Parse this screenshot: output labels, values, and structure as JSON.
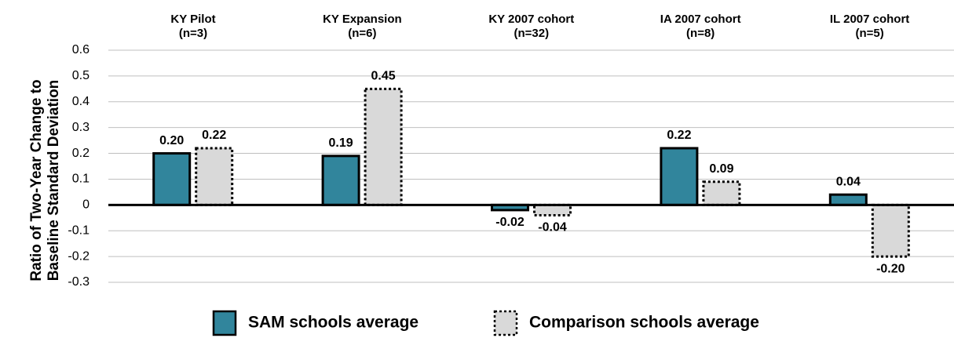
{
  "chart_data": {
    "type": "bar",
    "y_label": "Ratio of Two-Year Change to\nBaseline Standard Deviation",
    "categories": [
      "KY Pilot\n(n=3)",
      "KY Expansion\n(n=6)",
      "KY 2007 cohort\n(n=32)",
      "IA 2007 cohort\n(n=8)",
      "IL 2007 cohort\n(n=5)"
    ],
    "series": [
      {
        "name": "SAM schools average",
        "color": "#31859c",
        "edge": "solid",
        "values": [
          0.2,
          0.19,
          -0.02,
          0.22,
          0.04
        ],
        "value_labels": [
          "0.20",
          "0.19",
          "-0.02",
          "0.22",
          "0.04"
        ]
      },
      {
        "name": "Comparison schools average",
        "color": "#d9d9d9",
        "edge": "dotted",
        "values": [
          0.22,
          0.45,
          -0.04,
          0.09,
          -0.2
        ],
        "value_labels": [
          "0.22",
          "0.45",
          "-0.04",
          "0.09",
          "-0.20"
        ]
      }
    ],
    "ylim": [
      -0.3,
      0.6
    ],
    "yticks": [
      0.6,
      0.5,
      0.4,
      0.3,
      0.2,
      0.1,
      0,
      -0.1,
      -0.2,
      -0.3
    ],
    "grid": true,
    "legend": "bottom"
  }
}
